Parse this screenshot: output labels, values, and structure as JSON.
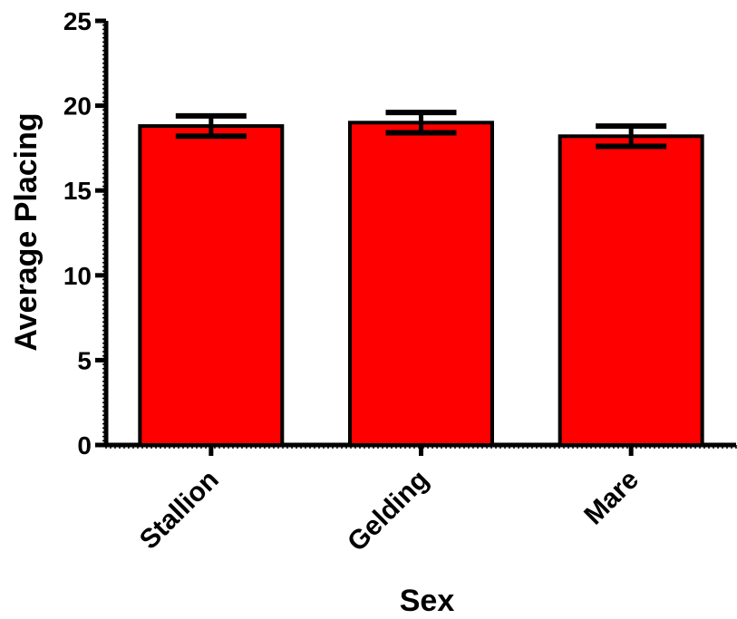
{
  "chart_data": {
    "type": "bar",
    "title": "",
    "xlabel": "Sex",
    "ylabel": "Average Placing",
    "categories": [
      "Stallion",
      "Gelding",
      "Mare"
    ],
    "values": [
      18.8,
      19.0,
      18.2
    ],
    "error": [
      0.6,
      0.6,
      0.6
    ],
    "ylim": [
      0,
      25
    ],
    "yticks": [
      "0",
      "5",
      "10",
      "15",
      "20",
      "25"
    ],
    "bar_color": "#ff0000",
    "edge_color": "#000000",
    "grid": false,
    "legend": "none"
  }
}
